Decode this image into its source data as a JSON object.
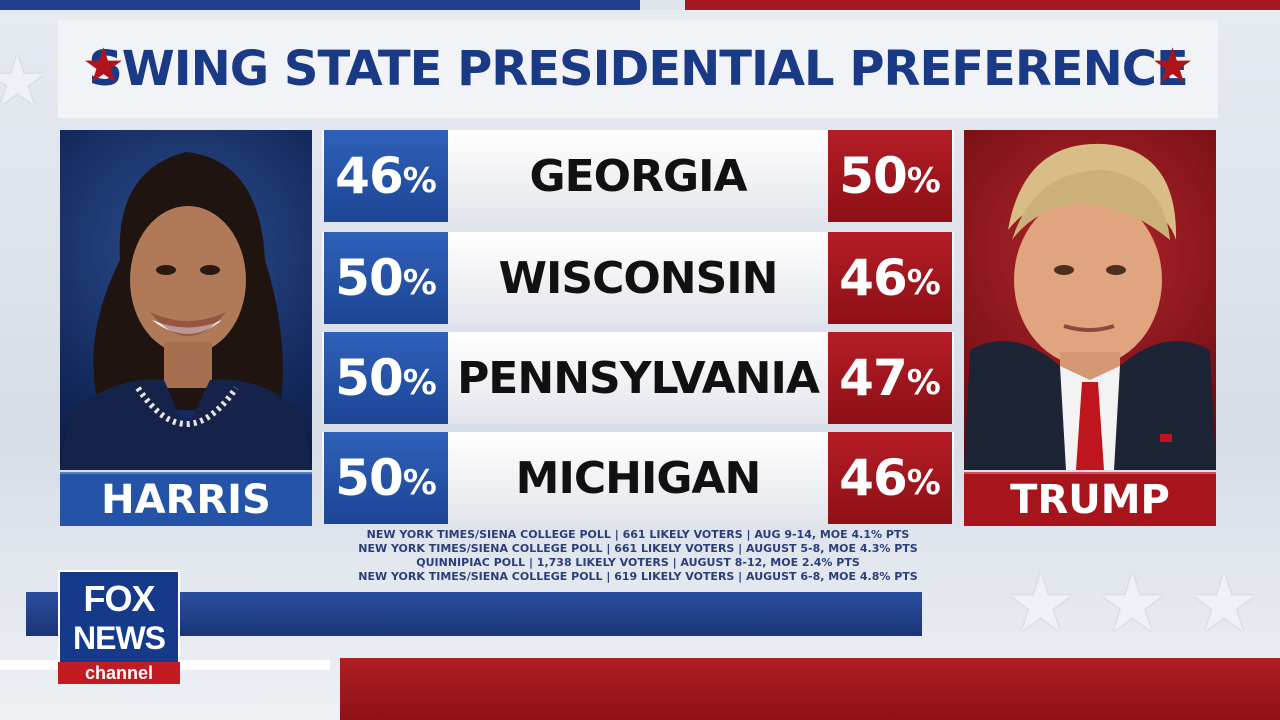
{
  "title": "SWING STATE PRESIDENTIAL PREFERENCE",
  "colors": {
    "democrat": "#2453a8",
    "republican": "#a8141c",
    "title": "#1a3a86"
  },
  "candidates": {
    "left": {
      "name": "HARRIS"
    },
    "right": {
      "name": "TRUMP"
    }
  },
  "rows": [
    {
      "state": "GEORGIA",
      "harris": "46",
      "trump": "50"
    },
    {
      "state": "WISCONSIN",
      "harris": "50",
      "trump": "46"
    },
    {
      "state": "PENNSYLVANIA",
      "harris": "50",
      "trump": "47"
    },
    {
      "state": "MICHIGAN",
      "harris": "50",
      "trump": "46"
    }
  ],
  "percent_sign": "%",
  "sources": [
    "NEW YORK TIMES/SIENA COLLEGE POLL | 661 LIKELY VOTERS | AUG 9-14, MOE 4.1% PTS",
    "NEW YORK TIMES/SIENA COLLEGE POLL | 661 LIKELY VOTERS | AUGUST 5-8, MOE 4.3% PTS",
    "QUINNIPIAC POLL | 1,738 LIKELY VOTERS | AUGUST 8-12, MOE 2.4% PTS",
    "NEW YORK TIMES/SIENA COLLEGE POLL | 619 LIKELY VOTERS | AUGUST 6-8, MOE 4.8% PTS"
  ],
  "logo": {
    "line1": "FOX",
    "line2": "NEWS",
    "line3": "channel"
  }
}
